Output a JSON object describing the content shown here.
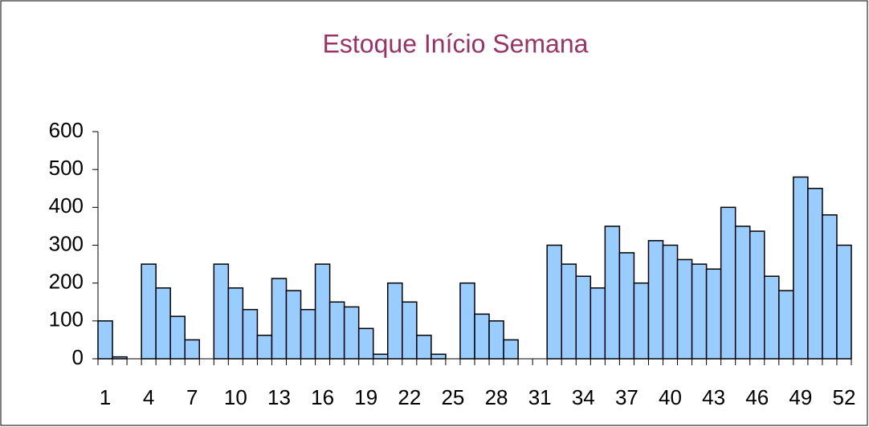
{
  "chart_data": {
    "type": "bar",
    "title": "Estoque Início Semana",
    "categories": [
      "1",
      null,
      null,
      "4",
      null,
      null,
      "7",
      null,
      null,
      "10",
      null,
      null,
      "13",
      null,
      null,
      "16",
      null,
      null,
      "19",
      null,
      null,
      "22",
      null,
      null,
      "25",
      null,
      null,
      "28",
      null,
      null,
      "31",
      null,
      null,
      "34",
      null,
      null,
      "37",
      null,
      null,
      "40",
      null,
      null,
      "43",
      null,
      null,
      "46",
      null,
      null,
      "49",
      null,
      null,
      "52"
    ],
    "values": [
      100,
      5,
      0,
      250,
      187,
      112,
      50,
      0,
      250,
      187,
      130,
      62,
      212,
      180,
      130,
      250,
      150,
      137,
      80,
      12,
      200,
      150,
      62,
      12,
      0,
      200,
      118,
      100,
      50,
      0,
      0,
      300,
      250,
      218,
      187,
      350,
      280,
      200,
      312,
      300,
      262,
      250,
      237,
      400,
      350,
      337,
      218,
      180,
      480,
      450,
      380,
      300
    ],
    "color": "#99ccff",
    "ylim": [
      0,
      600
    ],
    "yticks": [
      0,
      100,
      200,
      300,
      400,
      500,
      600
    ],
    "grid": false
  }
}
